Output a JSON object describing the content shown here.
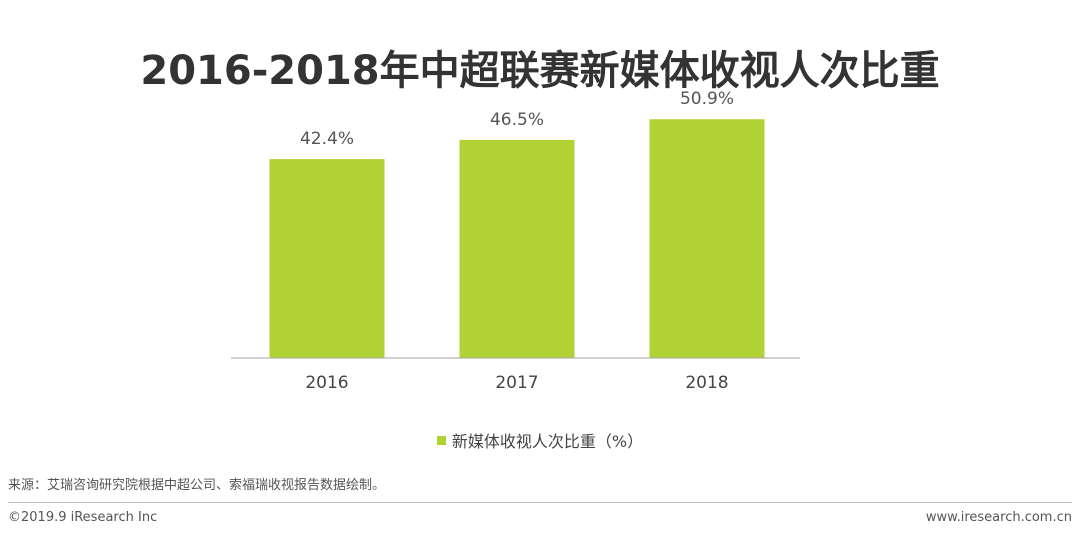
{
  "header": {
    "title": "2016-2018年中超联赛新媒体收视人次比重"
  },
  "chart_data": {
    "type": "bar",
    "categories": [
      "2016",
      "2017",
      "2018"
    ],
    "series": [
      {
        "name": "新媒体收视人次比重（%）",
        "values": [
          42.4,
          46.5,
          50.9
        ],
        "labels": [
          "42.4%",
          "46.5%",
          "50.9%"
        ],
        "color": "#b1d235"
      }
    ],
    "title": "2016-2018年中超联赛新媒体收视人次比重",
    "xlabel": "",
    "ylabel": "",
    "ylim": [
      0,
      55
    ],
    "grid": false,
    "legend": "bottom"
  },
  "legend": {
    "label": "新媒体收视人次比重（%）",
    "color": "#b1d235"
  },
  "footer": {
    "source": "来源：艾瑞咨询研究院根据中超公司、索福瑞收视报告数据绘制。",
    "copyright": "©2019.9 iResearch Inc",
    "website": "www.iresearch.com.cn"
  }
}
